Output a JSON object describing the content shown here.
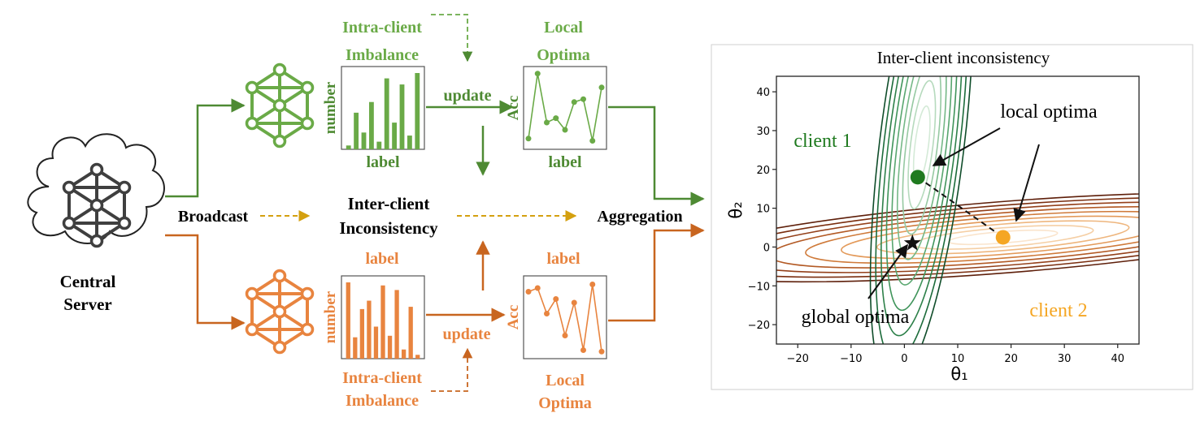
{
  "colors": {
    "green": "#6aaa47",
    "dark_green": "#4e8a33",
    "orange": "#e8843f",
    "dark_orange": "#c8651f",
    "gold": "#d4a010",
    "net_gray": "#3f3f3f",
    "plot_green": "#1f7a1f",
    "plot_orange": "#f5a623"
  },
  "server": {
    "line1": "Central",
    "line2": "Server"
  },
  "flow": {
    "broadcast": "Broadcast",
    "inter_line1": "Inter-client",
    "inter_line2": "Inconsistency",
    "aggregation": "Aggregation"
  },
  "top_client": {
    "imbalance_line1": "Intra-client",
    "imbalance_line2": "Imbalance",
    "update": "update",
    "optima_line1": "Local",
    "optima_line2": "Optima",
    "hist_ylabel": "number",
    "hist_xlabel": "label",
    "acc_ylabel": "Acc",
    "acc_xlabel": "label",
    "hist_values": [
      0.05,
      0.48,
      0.22,
      0.62,
      0.1,
      0.93,
      0.35,
      0.85,
      0.18,
      1.0
    ],
    "acc_values": [
      0.08,
      0.97,
      0.3,
      0.36,
      0.2,
      0.58,
      0.62,
      0.05,
      0.78
    ]
  },
  "bottom_client": {
    "imbalance_line1": "Intra-client",
    "imbalance_line2": "Imbalance",
    "update": "update",
    "optima_line1": "Local",
    "optima_line2": "Optima",
    "hist_ylabel": "number",
    "hist_xlabel": "label",
    "hist_top_label": "label",
    "acc_ylabel": "Acc",
    "acc_xlabel": "label",
    "hist_values": [
      1.0,
      0.28,
      0.65,
      0.76,
      0.42,
      0.96,
      0.3,
      0.9,
      0.12,
      0.68,
      0.05
    ],
    "acc_values": [
      0.85,
      0.9,
      0.55,
      0.75,
      0.25,
      0.7,
      0.05,
      0.95,
      0.03
    ]
  },
  "chart_data": {
    "type": "contour",
    "title": "Inter-client inconsistency",
    "xlabel": "θ₁",
    "ylabel": "θ₂",
    "xlim": [
      -24,
      44
    ],
    "ylim": [
      -25,
      44
    ],
    "xticks": [
      -20,
      -10,
      0,
      10,
      20,
      30,
      40
    ],
    "yticks": [
      -20,
      -10,
      0,
      10,
      20,
      30,
      40
    ],
    "series": [
      {
        "name": "client 1",
        "center": [
          2.5,
          18
        ],
        "color": "#1f7a1f"
      },
      {
        "name": "client 2",
        "center": [
          18.5,
          2.5
        ],
        "color": "#f5a623"
      }
    ],
    "points": [
      {
        "x": 2.5,
        "y": 18,
        "kind": "local"
      },
      {
        "x": 18.5,
        "y": 2.5,
        "kind": "local"
      },
      {
        "x": 1.5,
        "y": 1,
        "kind": "global"
      }
    ],
    "annotations": {
      "local": "local optima",
      "global": "global optima"
    }
  }
}
